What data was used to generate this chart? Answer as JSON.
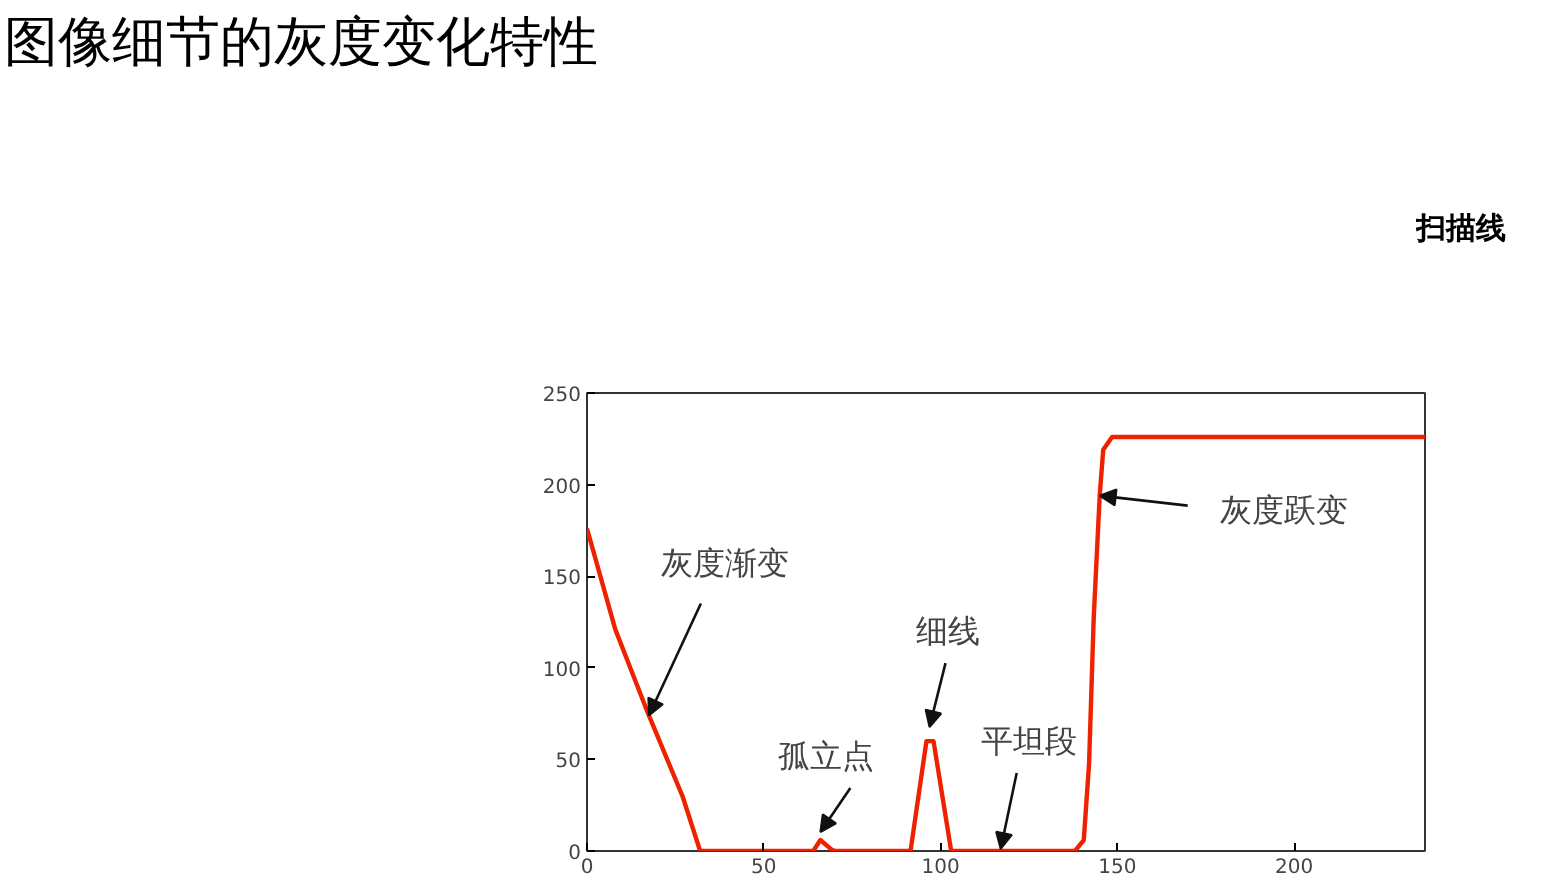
{
  "chart_data": {
    "type": "line",
    "title": "图像细节的灰度变化特性",
    "x": [
      0,
      8,
      17.5,
      27,
      32,
      64,
      66,
      69,
      70,
      91.5,
      96,
      98,
      103,
      138,
      140.5,
      142,
      143.3,
      145,
      146,
      148.5,
      237
    ],
    "series": [
      {
        "color": "#ee2200",
        "values": [
          176,
          121,
          74,
          30,
          0,
          0,
          6,
          1,
          0,
          0,
          60,
          60,
          0,
          0,
          6,
          48,
          127,
          194,
          219,
          226,
          226
        ]
      }
    ],
    "xlim": [
      0,
      237
    ],
    "ylim": [
      0,
      250
    ],
    "xticks": [
      0,
      50,
      100,
      150,
      200
    ],
    "yticks": [
      0,
      50,
      100,
      150,
      200,
      250
    ],
    "grid": false,
    "marker": "none",
    "line_style": "solid",
    "annotations": [
      {
        "text": "灰度渐变",
        "x": 17.5,
        "y": 74
      },
      {
        "text": "孤立点",
        "x": 66,
        "y": 6
      },
      {
        "text": "细线",
        "x": 98,
        "y": 60
      },
      {
        "text": "平坦段",
        "x": 117,
        "y": 0
      },
      {
        "text": "灰度跃变",
        "x": 145,
        "y": 194
      },
      "扫描线"
    ]
  }
}
